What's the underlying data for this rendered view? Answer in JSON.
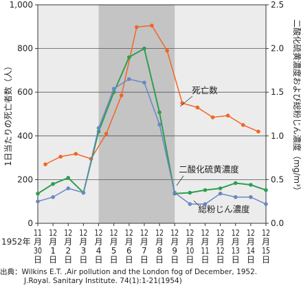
{
  "chart_data": {
    "type": "line",
    "year_label": "1952年",
    "categories": [
      [
        "11",
        "月",
        "30",
        "日"
      ],
      [
        "12",
        "月",
        "1",
        "日"
      ],
      [
        "12",
        "月",
        "2",
        "日"
      ],
      [
        "12",
        "月",
        "3",
        "日"
      ],
      [
        "12",
        "月",
        "4",
        "日"
      ],
      [
        "12",
        "月",
        "5",
        "日"
      ],
      [
        "12",
        "月",
        "6",
        "日"
      ],
      [
        "12",
        "月",
        "7",
        "日"
      ],
      [
        "12",
        "月",
        "8",
        "日"
      ],
      [
        "12",
        "月",
        "9",
        "日"
      ],
      [
        "12",
        "月",
        "10",
        "日"
      ],
      [
        "12",
        "月",
        "11",
        "日"
      ],
      [
        "12",
        "月",
        "12",
        "日"
      ],
      [
        "12",
        "月",
        "13",
        "日"
      ],
      [
        "12",
        "月",
        "14",
        "日"
      ],
      [
        "12",
        "月",
        "15",
        "日"
      ]
    ],
    "ylabel_left": "1日当たりの死亡者数（人）",
    "ylabel_right": "二酸化硫黄濃度および総粉じん濃度（mg/m³）",
    "ylim_left": [
      0,
      1000
    ],
    "ylim_right": [
      0,
      2.5
    ],
    "yticks_left": [
      "0",
      "200",
      "400",
      "600",
      "800",
      "1,000"
    ],
    "yticks_right": [
      "0.0",
      "0.5",
      "1.0",
      "1.5",
      "2.0",
      "2.5"
    ],
    "fog_period_shaded": [
      "12月4日",
      "12月9日"
    ],
    "series": [
      {
        "name": "死亡数",
        "axis": "left",
        "color": "#f26522",
        "x": [
          0.5,
          1.5,
          2.5,
          3.5,
          4.5,
          5.5,
          6.5,
          7.5,
          8.5,
          9.5,
          10.5,
          11.5,
          12.5,
          13.5,
          14.5
        ],
        "values": [
          270,
          305,
          318,
          295,
          410,
          585,
          898,
          905,
          790,
          550,
          530,
          485,
          493,
          450,
          420
        ]
      },
      {
        "name": "二酸化硫黄濃度",
        "axis": "right",
        "color": "#2e9e4f",
        "x": [
          0,
          1,
          2,
          3,
          4,
          5,
          6,
          7,
          8,
          9,
          10,
          11,
          12,
          13,
          14,
          15
        ],
        "values": [
          0.34,
          0.45,
          0.52,
          0.35,
          1.05,
          1.5,
          1.9,
          2.0,
          1.27,
          0.34,
          0.35,
          0.38,
          0.4,
          0.46,
          0.44,
          0.38
        ]
      },
      {
        "name": "総粉じん濃度",
        "axis": "right",
        "color": "#6b86c4",
        "x": [
          0,
          1,
          2,
          3,
          4,
          5,
          6,
          7,
          8,
          9,
          10,
          11,
          12,
          13,
          14,
          15
        ],
        "values": [
          0.25,
          0.3,
          0.4,
          0.35,
          1.09,
          1.54,
          1.65,
          1.61,
          1.13,
          0.35,
          0.22,
          0.22,
          0.34,
          0.3,
          0.3,
          0.22
        ]
      }
    ]
  },
  "source": {
    "line1": "出典：Wilkins E.T. ,Air pollution and the London fog of December, 1952.",
    "line2": "J.Royal. Sanitary Institute. 74(1):1-21(1954)"
  }
}
